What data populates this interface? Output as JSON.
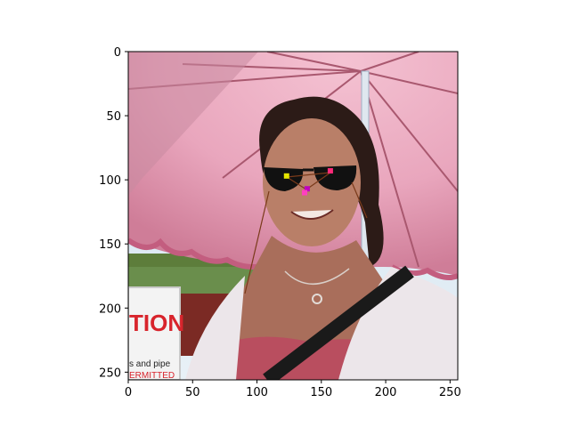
{
  "figure": {
    "background": "#ffffff",
    "image_extent": {
      "x": [
        0,
        256
      ],
      "y": [
        256,
        0
      ]
    },
    "photo": {
      "description_free": true,
      "sky_color": "#d9e7f2",
      "umbrella_color": "#e79bb3",
      "umbrella_shadow": "#b35876",
      "hair_color": "#2a1a17",
      "skin_color": "#b47a64",
      "top_color": "#d97a8d",
      "cardigan_color": "#efe8ee",
      "sign_text_1": "TION",
      "sign_text_2": "s and pipe",
      "sign_text_3": "ERMITTED"
    },
    "landmarks": [
      {
        "name": "left-eye",
        "x": 123,
        "y": 97,
        "color": "#e5e500"
      },
      {
        "name": "right-eye",
        "x": 157,
        "y": 93,
        "color": "#ff2a7a"
      },
      {
        "name": "nose",
        "x": 139,
        "y": 107,
        "color": "#c000c0"
      },
      {
        "name": "mouth-left",
        "x": 137,
        "y": 110,
        "color": "#ff40c0"
      }
    ],
    "x_ticks": [
      "0",
      "50",
      "100",
      "150",
      "200",
      "250"
    ],
    "y_ticks": [
      "0",
      "50",
      "100",
      "150",
      "200",
      "250"
    ],
    "x_tick_values": [
      0,
      50,
      100,
      150,
      200,
      250
    ],
    "y_tick_values": [
      0,
      50,
      100,
      150,
      200,
      250
    ]
  }
}
